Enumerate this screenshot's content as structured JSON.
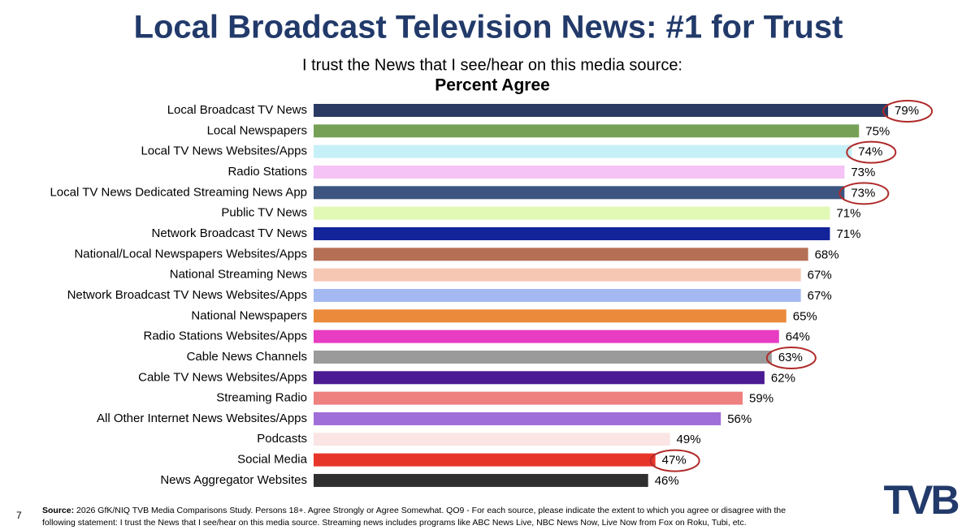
{
  "chart_data": {
    "type": "hbar",
    "title": "Local Broadcast Television News: #1 for Trust",
    "subtitle": "I trust the News that I see/hear on this media source:",
    "subtitle_bold": "Percent Agree",
    "categories": [
      "Local Broadcast TV News",
      "Local Newspapers",
      "Local TV News Websites/Apps",
      "Radio Stations",
      "Local TV News Dedicated Streaming News App",
      "Public TV News",
      "Network Broadcast TV News",
      "National/Local Newspapers Websites/Apps",
      "National Streaming News",
      "Network Broadcast TV News Websites/Apps",
      "National Newspapers",
      "Radio Stations Websites/Apps",
      "Cable News Channels",
      "Cable TV News Websites/Apps",
      "Streaming Radio",
      "All Other Internet News Websites/Apps",
      "Podcasts",
      "Social Media",
      "News Aggregator Websites"
    ],
    "values": [
      79,
      75,
      74,
      73,
      73,
      71,
      71,
      68,
      67,
      67,
      65,
      64,
      63,
      62,
      59,
      56,
      49,
      47,
      46
    ],
    "value_labels": [
      "79%",
      "75%",
      "74%",
      "73%",
      "73%",
      "71%",
      "71%",
      "68%",
      "67%",
      "67%",
      "65%",
      "64%",
      "63%",
      "62%",
      "59%",
      "56%",
      "49%",
      "47%",
      "46%"
    ],
    "colors": [
      "#2b3a63",
      "#76a055",
      "#c6f0f7",
      "#f5c3f5",
      "#3b5580",
      "#e2f8b5",
      "#13239a",
      "#b56f55",
      "#f6c7b3",
      "#a4b8f2",
      "#ea8a3a",
      "#e83cc2",
      "#9a9a9a",
      "#4b1b93",
      "#ee8080",
      "#a06ed8",
      "#fae4e4",
      "#e8352a",
      "#2f2f2f"
    ],
    "circled": [
      true,
      false,
      true,
      false,
      true,
      false,
      false,
      false,
      false,
      false,
      false,
      false,
      true,
      false,
      false,
      false,
      false,
      true,
      false
    ],
    "circle_color": "#b02a2a"
  },
  "footer": {
    "source_label": "Source:",
    "source_lines": [
      "2026 GfK/NIQ TVB Media Comparisons Study. Persons 18+. Agree Strongly or Agree Somewhat. QO9 - For each source, please indicate the extent to which you agree or disagree with the",
      "following statement: I trust the News that I see/hear on this media source. Streaming news includes programs like ABC News Live, NBC News Now, Live Now from Fox on Roku, Tubi, etc."
    ],
    "page_number": 7,
    "logo": "TVB"
  }
}
